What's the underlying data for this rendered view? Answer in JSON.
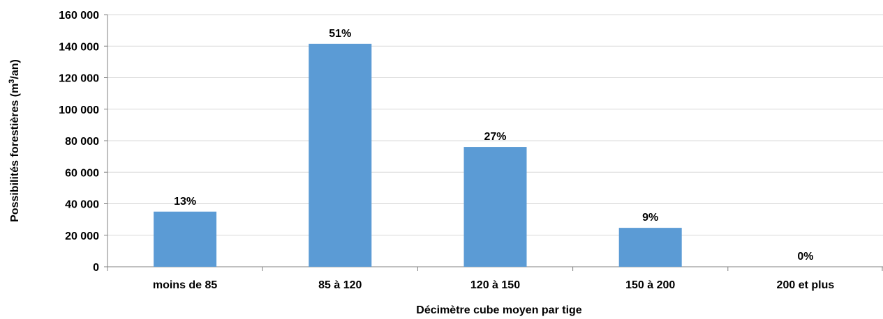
{
  "chart_data": {
    "type": "bar",
    "categories": [
      "moins de 85",
      "85 à 120",
      "120 à 150",
      "150 à 200",
      "200 et plus"
    ],
    "values": [
      35000,
      141500,
      76000,
      24700,
      0
    ],
    "data_labels": [
      "13%",
      "51%",
      "27%",
      "9%",
      "0%"
    ],
    "xlabel": "Décimètre cube moyen par tige",
    "ylabel_main": "Possibilités forestières (m",
    "ylabel_sup": "3",
    "ylabel_end": "/an)",
    "ylim": [
      0,
      160000
    ],
    "yticks": [
      {
        "value": 0,
        "label": "0"
      },
      {
        "value": 20000,
        "label": "20 000"
      },
      {
        "value": 40000,
        "label": "40 000"
      },
      {
        "value": 60000,
        "label": "60 000"
      },
      {
        "value": 80000,
        "label": "80 000"
      },
      {
        "value": 100000,
        "label": "100 000"
      },
      {
        "value": 120000,
        "label": "120 000"
      },
      {
        "value": 140000,
        "label": "140 000"
      },
      {
        "value": 160000,
        "label": "160 000"
      }
    ],
    "grid": true,
    "legend": "none",
    "colors": {
      "bar": "#5b9bd5",
      "grid": "#d9d9d9",
      "axis": "#808080"
    }
  }
}
